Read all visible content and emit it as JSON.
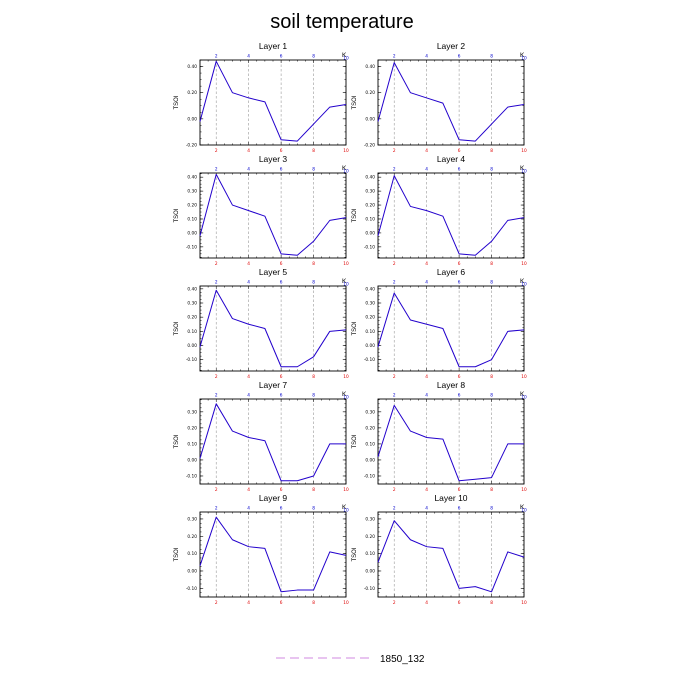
{
  "title": "soil temperature",
  "legend": {
    "label": "1850_132",
    "color": "#d9a0e6"
  },
  "line_color": "#2200cc",
  "chart_data": [
    {
      "type": "line",
      "title": "Layer 1",
      "ylabel": "TSOI",
      "top_label": "K",
      "x": [
        1,
        2,
        3,
        4,
        5,
        6,
        7,
        8,
        9,
        10
      ],
      "ylim": [
        -0.2,
        0.45
      ],
      "yticks": [
        -0.2,
        0.0,
        0.2,
        0.4
      ],
      "ytick_labels": [
        "-0.20",
        "0.00",
        "0.20",
        "0.40"
      ],
      "xticks_bottom": [
        2,
        4,
        6,
        8,
        10
      ],
      "xticks_top": [
        2,
        4,
        6,
        8,
        10
      ],
      "vlines": [
        2,
        4,
        6,
        8
      ],
      "series": [
        {
          "values": [
            -0.02,
            0.44,
            0.2,
            0.16,
            0.13,
            -0.16,
            -0.17,
            -0.04,
            0.09,
            0.11
          ]
        }
      ]
    },
    {
      "type": "line",
      "title": "Layer 2",
      "ylabel": "TSOI",
      "top_label": "K",
      "x": [
        1,
        2,
        3,
        4,
        5,
        6,
        7,
        8,
        9,
        10
      ],
      "ylim": [
        -0.2,
        0.45
      ],
      "yticks": [
        -0.2,
        0.0,
        0.2,
        0.4
      ],
      "ytick_labels": [
        "-0.20",
        "0.00",
        "0.20",
        "0.40"
      ],
      "xticks_bottom": [
        2,
        4,
        6,
        8,
        10
      ],
      "xticks_top": [
        2,
        4,
        6,
        8,
        10
      ],
      "vlines": [
        2,
        4,
        6,
        8
      ],
      "series": [
        {
          "values": [
            -0.02,
            0.43,
            0.2,
            0.16,
            0.12,
            -0.16,
            -0.17,
            -0.04,
            0.09,
            0.11
          ]
        }
      ]
    },
    {
      "type": "line",
      "title": "Layer 3",
      "ylabel": "TSOI",
      "top_label": "K",
      "x": [
        1,
        2,
        3,
        4,
        5,
        6,
        7,
        8,
        9,
        10
      ],
      "ylim": [
        -0.18,
        0.43
      ],
      "yticks": [
        -0.1,
        0.0,
        0.1,
        0.2,
        0.3,
        0.4
      ],
      "ytick_labels": [
        "-0.10",
        "0.00",
        "0.10",
        "0.20",
        "0.30",
        "0.40"
      ],
      "xticks_bottom": [
        2,
        4,
        6,
        8,
        10
      ],
      "xticks_top": [
        2,
        4,
        6,
        8,
        10
      ],
      "vlines": [
        2,
        4,
        6,
        8
      ],
      "series": [
        {
          "values": [
            -0.02,
            0.42,
            0.2,
            0.16,
            0.12,
            -0.15,
            -0.16,
            -0.06,
            0.09,
            0.11
          ]
        }
      ]
    },
    {
      "type": "line",
      "title": "Layer 4",
      "ylabel": "TSOI",
      "top_label": "K",
      "x": [
        1,
        2,
        3,
        4,
        5,
        6,
        7,
        8,
        9,
        10
      ],
      "ylim": [
        -0.18,
        0.43
      ],
      "yticks": [
        -0.1,
        0.0,
        0.1,
        0.2,
        0.3,
        0.4
      ],
      "ytick_labels": [
        "-0.10",
        "0.00",
        "0.10",
        "0.20",
        "0.30",
        "0.40"
      ],
      "xticks_bottom": [
        2,
        4,
        6,
        8,
        10
      ],
      "xticks_top": [
        2,
        4,
        6,
        8,
        10
      ],
      "vlines": [
        2,
        4,
        6,
        8
      ],
      "series": [
        {
          "values": [
            -0.02,
            0.41,
            0.19,
            0.16,
            0.12,
            -0.15,
            -0.16,
            -0.06,
            0.09,
            0.11
          ]
        }
      ]
    },
    {
      "type": "line",
      "title": "Layer 5",
      "ylabel": "TSOI",
      "top_label": "K",
      "x": [
        1,
        2,
        3,
        4,
        5,
        6,
        7,
        8,
        9,
        10
      ],
      "ylim": [
        -0.18,
        0.42
      ],
      "yticks": [
        -0.1,
        0.0,
        0.1,
        0.2,
        0.3,
        0.4
      ],
      "ytick_labels": [
        "-0.10",
        "0.00",
        "0.10",
        "0.20",
        "0.30",
        "0.40"
      ],
      "xticks_bottom": [
        2,
        4,
        6,
        8,
        10
      ],
      "xticks_top": [
        2,
        4,
        6,
        8,
        10
      ],
      "vlines": [
        2,
        4,
        6,
        8
      ],
      "series": [
        {
          "values": [
            -0.01,
            0.39,
            0.19,
            0.15,
            0.12,
            -0.15,
            -0.15,
            -0.08,
            0.1,
            0.11
          ]
        }
      ]
    },
    {
      "type": "line",
      "title": "Layer 6",
      "ylabel": "TSOI",
      "top_label": "K",
      "x": [
        1,
        2,
        3,
        4,
        5,
        6,
        7,
        8,
        9,
        10
      ],
      "ylim": [
        -0.18,
        0.42
      ],
      "yticks": [
        -0.1,
        0.0,
        0.1,
        0.2,
        0.3,
        0.4
      ],
      "ytick_labels": [
        "-0.10",
        "0.00",
        "0.10",
        "0.20",
        "0.30",
        "0.40"
      ],
      "xticks_bottom": [
        2,
        4,
        6,
        8,
        10
      ],
      "xticks_top": [
        2,
        4,
        6,
        8,
        10
      ],
      "vlines": [
        2,
        4,
        6,
        8
      ],
      "series": [
        {
          "values": [
            -0.01,
            0.37,
            0.18,
            0.15,
            0.12,
            -0.15,
            -0.15,
            -0.1,
            0.1,
            0.11
          ]
        }
      ]
    },
    {
      "type": "line",
      "title": "Layer 7",
      "ylabel": "TSOI",
      "top_label": "K",
      "x": [
        1,
        2,
        3,
        4,
        5,
        6,
        7,
        8,
        9,
        10
      ],
      "ylim": [
        -0.15,
        0.38
      ],
      "yticks": [
        -0.1,
        0.0,
        0.1,
        0.2,
        0.3
      ],
      "ytick_labels": [
        "-0.10",
        "0.00",
        "0.10",
        "0.20",
        "0.30"
      ],
      "xticks_bottom": [
        2,
        4,
        6,
        8,
        10
      ],
      "xticks_top": [
        2,
        4,
        6,
        8,
        10
      ],
      "vlines": [
        2,
        4,
        6,
        8
      ],
      "series": [
        {
          "values": [
            0.01,
            0.35,
            0.18,
            0.14,
            0.12,
            -0.13,
            -0.13,
            -0.1,
            0.1,
            0.1
          ]
        }
      ]
    },
    {
      "type": "line",
      "title": "Layer 8",
      "ylabel": "TSOI",
      "top_label": "K",
      "x": [
        1,
        2,
        3,
        4,
        5,
        6,
        7,
        8,
        9,
        10
      ],
      "ylim": [
        -0.15,
        0.38
      ],
      "yticks": [
        -0.1,
        0.0,
        0.1,
        0.2,
        0.3
      ],
      "ytick_labels": [
        "-0.10",
        "0.00",
        "0.10",
        "0.20",
        "0.30"
      ],
      "xticks_bottom": [
        2,
        4,
        6,
        8,
        10
      ],
      "xticks_top": [
        2,
        4,
        6,
        8,
        10
      ],
      "vlines": [
        2,
        4,
        6,
        8
      ],
      "series": [
        {
          "values": [
            0.02,
            0.34,
            0.18,
            0.14,
            0.13,
            -0.13,
            -0.12,
            -0.11,
            0.1,
            0.1
          ]
        }
      ]
    },
    {
      "type": "line",
      "title": "Layer 9",
      "ylabel": "TSOI",
      "top_label": "K",
      "x": [
        1,
        2,
        3,
        4,
        5,
        6,
        7,
        8,
        9,
        10
      ],
      "ylim": [
        -0.15,
        0.34
      ],
      "yticks": [
        -0.1,
        0.0,
        0.1,
        0.2,
        0.3
      ],
      "ytick_labels": [
        "-0.10",
        "0.00",
        "0.10",
        "0.20",
        "0.30"
      ],
      "xticks_bottom": [
        2,
        4,
        6,
        8,
        10
      ],
      "xticks_top": [
        2,
        4,
        6,
        8,
        10
      ],
      "vlines": [
        2,
        4,
        6,
        8
      ],
      "series": [
        {
          "values": [
            0.03,
            0.31,
            0.18,
            0.14,
            0.13,
            -0.12,
            -0.11,
            -0.11,
            0.11,
            0.09
          ]
        }
      ]
    },
    {
      "type": "line",
      "title": "Layer 10",
      "ylabel": "TSOI",
      "top_label": "K",
      "x": [
        1,
        2,
        3,
        4,
        5,
        6,
        7,
        8,
        9,
        10
      ],
      "ylim": [
        -0.15,
        0.34
      ],
      "yticks": [
        -0.1,
        0.0,
        0.1,
        0.2,
        0.3
      ],
      "ytick_labels": [
        "-0.10",
        "0.00",
        "0.10",
        "0.20",
        "0.30"
      ],
      "xticks_bottom": [
        2,
        4,
        6,
        8,
        10
      ],
      "xticks_top": [
        2,
        4,
        6,
        8,
        10
      ],
      "vlines": [
        2,
        4,
        6,
        8
      ],
      "series": [
        {
          "values": [
            0.05,
            0.29,
            0.18,
            0.14,
            0.13,
            -0.1,
            -0.09,
            -0.12,
            0.11,
            0.08
          ]
        }
      ]
    }
  ]
}
